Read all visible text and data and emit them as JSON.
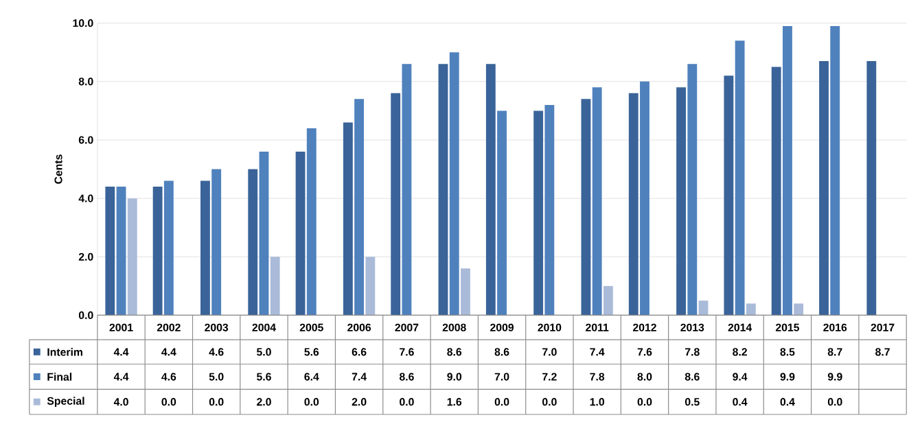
{
  "chart_data": {
    "type": "bar",
    "ylabel": "Cents",
    "categories": [
      "2001",
      "2002",
      "2003",
      "2004",
      "2005",
      "2006",
      "2007",
      "2008",
      "2009",
      "2010",
      "2011",
      "2012",
      "2013",
      "2014",
      "2015",
      "2016",
      "2017"
    ],
    "series": [
      {
        "name": "Interim",
        "color": "#3a6499",
        "values": [
          4.4,
          4.4,
          4.6,
          5.0,
          5.6,
          6.6,
          7.6,
          8.6,
          8.6,
          7.0,
          7.4,
          7.6,
          7.8,
          8.2,
          8.5,
          8.7,
          8.7
        ],
        "value_labels": [
          "4.4",
          "4.4",
          "4.6",
          "5.0",
          "5.6",
          "6.6",
          "7.6",
          "8.6",
          "8.6",
          "7.0",
          "7.4",
          "7.6",
          "7.8",
          "8.2",
          "8.5",
          "8.7",
          "8.7"
        ]
      },
      {
        "name": "Final",
        "color": "#4f81bd",
        "values": [
          4.4,
          4.6,
          5.0,
          5.6,
          6.4,
          7.4,
          8.6,
          9.0,
          7.0,
          7.2,
          7.8,
          8.0,
          8.6,
          9.4,
          9.9,
          9.9,
          null
        ],
        "value_labels": [
          "4.4",
          "4.6",
          "5.0",
          "5.6",
          "6.4",
          "7.4",
          "8.6",
          "9.0",
          "7.0",
          "7.2",
          "7.8",
          "8.0",
          "8.6",
          "9.4",
          "9.9",
          "9.9",
          null
        ]
      },
      {
        "name": "Special",
        "color": "#aabbd9",
        "values": [
          4.0,
          0.0,
          0.0,
          2.0,
          0.0,
          2.0,
          0.0,
          1.6,
          0.0,
          0.0,
          1.0,
          0.0,
          0.5,
          0.4,
          0.4,
          0.0,
          null
        ],
        "value_labels": [
          "4.0",
          "0.0",
          "0.0",
          "2.0",
          "0.0",
          "2.0",
          "0.0",
          "1.6",
          "0.0",
          "0.0",
          "1.0",
          "0.0",
          "0.5",
          "0.4",
          "0.4",
          "0.0",
          null
        ]
      }
    ],
    "ylim": [
      0,
      10
    ],
    "yticks": [
      {
        "value": 0,
        "label": "0.0"
      },
      {
        "value": 2,
        "label": "2.0"
      },
      {
        "value": 4,
        "label": "4.0"
      },
      {
        "value": 6,
        "label": "6.0"
      },
      {
        "value": 8,
        "label": "8.0"
      },
      {
        "value": 10,
        "label": "10.0"
      }
    ],
    "grid": "y",
    "legend": "bottom left"
  }
}
